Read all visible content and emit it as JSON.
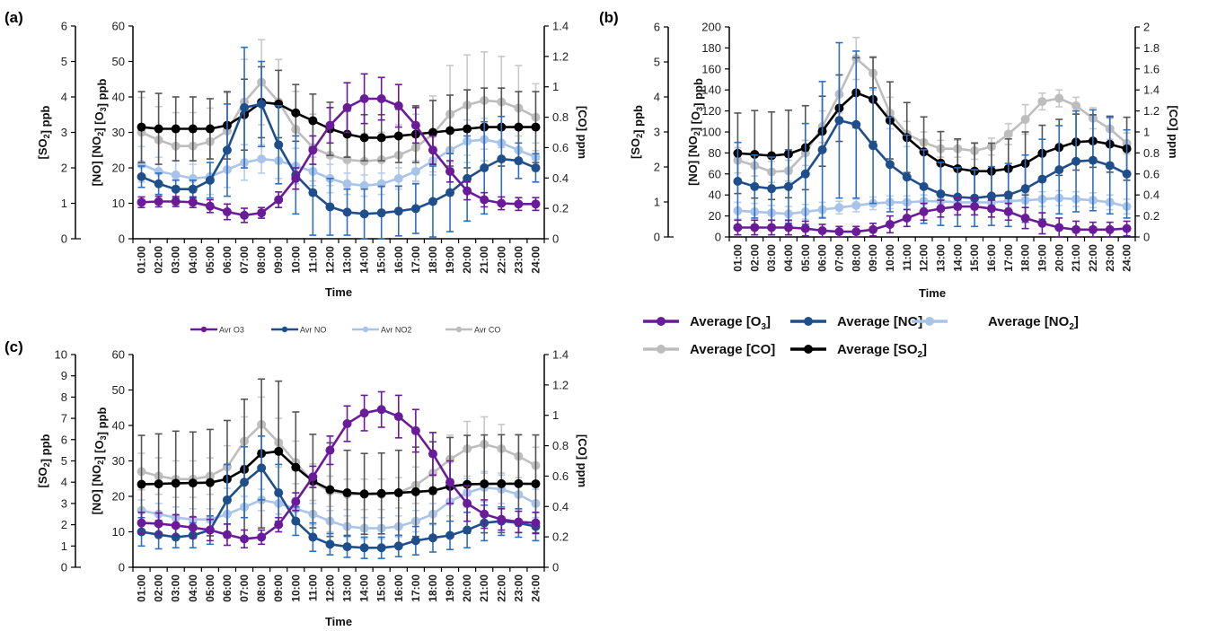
{
  "colors": {
    "O3": "#6a1b9a",
    "NO": "#1f4e8c",
    "NO2": "#a9c4e8",
    "CO": "#bdbdbd",
    "SO2": "#000000",
    "NO_err": "#2f6fc0",
    "SO2_err": "#555555"
  },
  "legend_small": {
    "items": [
      {
        "key": "O3",
        "label": "Avr O3"
      },
      {
        "key": "NO",
        "label": "Avr NO"
      },
      {
        "key": "NO2",
        "label": "Avr NO2"
      },
      {
        "key": "CO",
        "label": "Avr CO"
      }
    ]
  },
  "legend_big": {
    "items": [
      {
        "key": "O3",
        "label": "Average [O",
        "sub": "3",
        "suffix": "]"
      },
      {
        "key": "NO",
        "label": "Average [NO]",
        "sub": "",
        "suffix": ""
      },
      {
        "key": "NO2",
        "label": "Average [NO",
        "sub": "2",
        "suffix": "]"
      },
      {
        "key": "CO",
        "label": "Average [CO]",
        "sub": "",
        "suffix": ""
      },
      {
        "key": "SO2",
        "label": "Average [SO",
        "sub": "2",
        "suffix": "]"
      }
    ]
  },
  "chart_data": [
    {
      "panel": "(a)",
      "type": "line",
      "xlabel": "Time",
      "categories": [
        "01:00",
        "02:00",
        "03:00",
        "04:00",
        "05:00",
        "06:00",
        "07:00",
        "08:00",
        "09:00",
        "10:00",
        "11:00",
        "12:00",
        "13:00",
        "14:00",
        "15:00",
        "16:00",
        "17:00",
        "18:00",
        "19:00",
        "20:00",
        "21:00",
        "22:00",
        "23:00",
        "24:00"
      ],
      "axes": {
        "so2": {
          "label": "[SO2] ppb",
          "range": [
            0,
            6
          ],
          "ticks": [
            0,
            1,
            2,
            3,
            4,
            5,
            6
          ]
        },
        "main": {
          "label": "[NO] [NO2] [O3] ppb",
          "range": [
            0,
            60
          ],
          "ticks": [
            0,
            10,
            20,
            30,
            40,
            50,
            60
          ]
        },
        "co": {
          "label": "[CO] ppm",
          "range": [
            0,
            1.4
          ],
          "ticks": [
            0,
            0.2,
            0.4,
            0.6,
            0.8,
            1,
            1.2,
            1.4
          ]
        }
      },
      "series": [
        {
          "name": "Avr O3",
          "key": "O3",
          "axis": "main",
          "values": [
            10.3,
            10.5,
            10.5,
            10.3,
            9.2,
            7.6,
            6.6,
            7.3,
            11,
            17,
            25,
            32,
            37,
            39.5,
            39.5,
            37.5,
            32,
            25,
            19,
            13.5,
            11,
            10,
            9.8,
            9.8
          ],
          "err": [
            1.5,
            1.5,
            1.4,
            1.5,
            1.8,
            2.2,
            2.0,
            1.5,
            2.2,
            3,
            4,
            5,
            7,
            7,
            6,
            6,
            5,
            4,
            3,
            2.5,
            2,
            1.8,
            1.8,
            1.8
          ]
        },
        {
          "name": "Avr NO",
          "key": "NO",
          "axis": "main",
          "values": [
            17.5,
            15.5,
            14,
            14,
            16.5,
            25,
            37,
            38,
            26.5,
            18,
            13,
            9,
            7.5,
            7,
            7.3,
            7.8,
            8.5,
            10.5,
            13,
            17,
            20,
            22.5,
            22,
            20
          ],
          "err": [
            3,
            3,
            2.5,
            2.5,
            5,
            13,
            17,
            12,
            11,
            11,
            12,
            8,
            6.5,
            7,
            7.5,
            7,
            7,
            10,
            11,
            12,
            13,
            12,
            5,
            4
          ]
        },
        {
          "name": "Avr NO2",
          "key": "NO2",
          "axis": "main",
          "values": [
            21,
            19,
            18,
            17,
            17.5,
            19.5,
            21.5,
            22.5,
            22,
            20.5,
            19,
            17,
            15.5,
            15,
            15.5,
            17,
            19,
            22,
            25,
            27.5,
            28,
            27,
            25,
            23
          ],
          "err": [
            5,
            4,
            4,
            4,
            5,
            5,
            5,
            4,
            5,
            5,
            4,
            4,
            3,
            3,
            3,
            3,
            3,
            4,
            5,
            6,
            6,
            5,
            4,
            4
          ]
        },
        {
          "name": "Avr CO",
          "key": "CO",
          "axis": "co",
          "values": [
            0.7,
            0.65,
            0.61,
            0.61,
            0.64,
            0.71,
            0.9,
            1.03,
            0.9,
            0.72,
            0.6,
            0.55,
            0.52,
            0.51,
            0.52,
            0.55,
            0.6,
            0.69,
            0.82,
            0.88,
            0.91,
            0.9,
            0.86,
            0.8
          ],
          "err": [
            0.23,
            0.22,
            0.22,
            0.22,
            0.22,
            0.25,
            0.28,
            0.28,
            0.28,
            0.25,
            0.22,
            0.2,
            0.18,
            0.18,
            0.18,
            0.2,
            0.22,
            0.25,
            0.32,
            0.33,
            0.32,
            0.3,
            0.28,
            0.22
          ]
        },
        {
          "name": "Avr SO2",
          "key": "SO2",
          "axis": "so2",
          "values": [
            3.15,
            3.1,
            3.1,
            3.1,
            3.1,
            3.2,
            3.5,
            3.85,
            3.8,
            3.55,
            3.33,
            3.1,
            2.95,
            2.85,
            2.85,
            2.9,
            2.95,
            3.0,
            3.05,
            3.1,
            3.15,
            3.15,
            3.15,
            3.15
          ],
          "err": [
            1.0,
            1.0,
            0.9,
            0.9,
            0.85,
            0.95,
            1.0,
            1.0,
            0.95,
            0.8,
            0.75,
            0.75,
            0.65,
            0.65,
            0.65,
            0.75,
            0.8,
            0.9,
            1.0,
            1.1,
            1.1,
            1.1,
            1.0,
            1.0
          ]
        }
      ]
    },
    {
      "panel": "(b)",
      "type": "line",
      "xlabel": "Time",
      "categories": [
        "01:00",
        "02:00",
        "03:00",
        "04:00",
        "05:00",
        "06:00",
        "07:00",
        "08:00",
        "09:00",
        "10:00",
        "11:00",
        "12:00",
        "13:00",
        "14:00",
        "15:00",
        "16:00",
        "17:00",
        "18:00",
        "19:00",
        "20:00",
        "21:00",
        "22:00",
        "23:00",
        "24:00"
      ],
      "axes": {
        "so2": {
          "label": "[SO2] ppb",
          "range": [
            0,
            6
          ],
          "ticks": [
            0,
            1,
            2,
            3,
            4,
            5,
            6
          ]
        },
        "main": {
          "label": "[NO] [NO2] [O3] ppb",
          "range": [
            0,
            200
          ],
          "ticks": [
            0,
            20,
            40,
            60,
            80,
            100,
            120,
            140,
            160,
            180,
            200
          ]
        },
        "co": {
          "label": "[CO] ppm",
          "range": [
            0,
            2
          ],
          "ticks": [
            0,
            0.2,
            0.4,
            0.6,
            0.8,
            1,
            1.2,
            1.4,
            1.6,
            1.8,
            2
          ]
        }
      },
      "series": [
        {
          "name": "Average [O3]",
          "key": "O3",
          "axis": "main",
          "values": [
            9,
            9,
            9,
            9,
            8,
            6,
            5,
            5,
            7,
            12,
            18,
            24,
            27,
            29,
            29,
            27,
            24,
            18,
            13,
            9,
            7,
            7,
            7,
            8
          ],
          "err": [
            7,
            7,
            7,
            7,
            7,
            6,
            5,
            5,
            6,
            8,
            8,
            8,
            8,
            8,
            8,
            8,
            8,
            10,
            10,
            9,
            8,
            7,
            7,
            7
          ]
        },
        {
          "name": "Average [NO]",
          "key": "NO",
          "axis": "main",
          "values": [
            53,
            48,
            46,
            48,
            60,
            83,
            111,
            107,
            87,
            69,
            57,
            48,
            41,
            38,
            37,
            39,
            40,
            46,
            55,
            64,
            72,
            73,
            68,
            60
          ],
          "err": [
            37,
            30,
            30,
            35,
            48,
            65,
            74,
            70,
            55,
            45,
            40,
            35,
            30,
            28,
            27,
            28,
            30,
            32,
            38,
            42,
            48,
            48,
            46,
            42
          ]
        },
        {
          "name": "Average [NO2]",
          "key": "NO2",
          "axis": "main",
          "values": [
            25,
            24,
            23,
            22,
            24,
            26,
            28,
            30,
            32,
            33,
            33,
            34,
            34,
            33,
            33,
            33,
            34,
            35,
            36,
            37,
            36,
            35,
            33,
            29
          ],
          "err": [
            8,
            8,
            7,
            7,
            7,
            7,
            6,
            6,
            6,
            6,
            6,
            6,
            6,
            6,
            6,
            6,
            6,
            7,
            7,
            7,
            7,
            7,
            7,
            7
          ]
        },
        {
          "name": "Average [CO]",
          "key": "CO",
          "axis": "co",
          "values": [
            0.73,
            0.68,
            0.62,
            0.63,
            0.8,
            1.05,
            1.36,
            1.7,
            1.56,
            1.18,
            0.98,
            0.9,
            0.84,
            0.84,
            0.82,
            0.86,
            0.98,
            1.12,
            1.29,
            1.32,
            1.25,
            1.13,
            1.03,
            0.89
          ],
          "err": [
            0.12,
            0.1,
            0.1,
            0.1,
            0.12,
            0.15,
            0.18,
            0.2,
            0.16,
            0.15,
            0.12,
            0.1,
            0.08,
            0.08,
            0.08,
            0.08,
            0.1,
            0.14,
            0.08,
            0.08,
            0.08,
            0.1,
            0.1,
            0.1
          ]
        },
        {
          "name": "Average [SO2]",
          "key": "SO2",
          "axis": "so2",
          "values": [
            2.39,
            2.36,
            2.32,
            2.37,
            2.55,
            3.02,
            3.68,
            4.12,
            3.93,
            3.33,
            2.84,
            2.43,
            2.11,
            1.95,
            1.88,
            1.88,
            1.95,
            2.1,
            2.39,
            2.56,
            2.71,
            2.74,
            2.65,
            2.52
          ],
          "err": [
            1.15,
            1.25,
            1.25,
            1.25,
            1.2,
            1.0,
            0.95,
            1.0,
            1.2,
            1.1,
            1.0,
            1.0,
            0.9,
            0.85,
            0.8,
            0.8,
            0.85,
            0.9,
            0.8,
            0.8,
            0.8,
            0.75,
            0.8,
            0.9
          ]
        }
      ]
    },
    {
      "panel": "(c)",
      "type": "line",
      "xlabel": "Time",
      "categories": [
        "01:00",
        "02:00",
        "03:00",
        "04:00",
        "05:00",
        "06:00",
        "07:00",
        "08:00",
        "09:00",
        "10:00",
        "11:00",
        "12:00",
        "13:00",
        "14:00",
        "15:00",
        "16:00",
        "17:00",
        "18:00",
        "19:00",
        "20:00",
        "21:00",
        "22:00",
        "23:00",
        "24:00"
      ],
      "axes": {
        "so2": {
          "label": "[SO2] ppb",
          "range": [
            0,
            10
          ],
          "ticks": [
            0,
            1,
            2,
            3,
            4,
            5,
            6,
            7,
            8,
            9,
            10
          ]
        },
        "main": {
          "label": "[NO] [NO2] [O3] ppb",
          "range": [
            0,
            60
          ],
          "ticks": [
            0,
            10,
            20,
            30,
            40,
            50,
            60
          ]
        },
        "co": {
          "label": "[CO] ppm",
          "range": [
            0,
            1.4
          ],
          "ticks": [
            0,
            0.2,
            0.4,
            0.6,
            0.8,
            1,
            1.2,
            1.4
          ]
        }
      },
      "series": [
        {
          "name": "Avr O3",
          "key": "O3",
          "axis": "main",
          "values": [
            12.5,
            12.3,
            11.8,
            11.2,
            10.5,
            9.2,
            8,
            8.5,
            12,
            18.5,
            25.5,
            33,
            40.5,
            43.5,
            44.5,
            42.5,
            38.5,
            32,
            24,
            18,
            15,
            13.5,
            12.8,
            12.5
          ],
          "err": [
            3,
            3,
            3,
            3,
            3,
            3,
            2.5,
            2,
            2,
            2.5,
            3,
            4,
            5,
            5,
            5,
            6,
            6,
            6,
            6,
            5,
            4,
            3,
            3,
            3
          ]
        },
        {
          "name": "Avr NO",
          "key": "NO",
          "axis": "main",
          "values": [
            10,
            9.2,
            8.5,
            9,
            10.5,
            19,
            24,
            28,
            21,
            13,
            8.5,
            6.5,
            5.8,
            5.5,
            5.5,
            6,
            7.5,
            8.3,
            9,
            10.5,
            12.5,
            13,
            12.5,
            11.5
          ],
          "err": [
            4,
            4,
            3,
            3.5,
            4,
            10,
            10,
            9,
            8,
            4,
            4,
            3,
            3,
            3,
            3,
            3,
            4,
            4,
            4,
            5,
            5,
            4,
            4,
            4
          ]
        },
        {
          "name": "Avr NO2",
          "key": "NO2",
          "axis": "main",
          "values": [
            16,
            15,
            14,
            13.5,
            13.5,
            15,
            17,
            19,
            18,
            16.5,
            15,
            13,
            11.5,
            11,
            11,
            11.5,
            13,
            15,
            18.5,
            21,
            22.5,
            22,
            20.5,
            18
          ],
          "err": [
            3,
            3,
            3,
            3,
            3,
            3,
            3,
            3,
            3,
            3,
            3,
            3,
            3,
            3,
            3,
            3,
            3,
            3,
            4,
            4,
            4,
            4,
            4,
            4
          ]
        },
        {
          "name": "Avr CO",
          "key": "CO",
          "axis": "co",
          "values": [
            0.63,
            0.6,
            0.58,
            0.58,
            0.6,
            0.66,
            0.83,
            0.94,
            0.82,
            0.69,
            0.56,
            0.5,
            0.48,
            0.48,
            0.48,
            0.49,
            0.54,
            0.62,
            0.71,
            0.78,
            0.81,
            0.78,
            0.73,
            0.67
          ],
          "err": [
            0.12,
            0.12,
            0.12,
            0.12,
            0.12,
            0.14,
            0.16,
            0.18,
            0.16,
            0.14,
            0.12,
            0.1,
            0.1,
            0.1,
            0.1,
            0.1,
            0.12,
            0.14,
            0.16,
            0.18,
            0.18,
            0.16,
            0.14,
            0.12
          ]
        },
        {
          "name": "Avr SO2",
          "key": "SO2",
          "axis": "so2",
          "values": [
            3.9,
            3.92,
            3.95,
            3.96,
            3.98,
            4.15,
            4.6,
            5.35,
            5.45,
            4.7,
            4.05,
            3.65,
            3.5,
            3.45,
            3.47,
            3.5,
            3.55,
            3.6,
            3.8,
            3.9,
            3.92,
            3.93,
            3.93,
            3.92
          ],
          "err": [
            2.3,
            2.35,
            2.45,
            2.4,
            2.5,
            2.75,
            3.3,
            3.5,
            3.3,
            2.6,
            2.2,
            2.2,
            2.0,
            1.9,
            1.9,
            2.0,
            2.1,
            2.3,
            2.3,
            2.3,
            2.3,
            2.3,
            2.3,
            2.3
          ]
        }
      ]
    }
  ]
}
